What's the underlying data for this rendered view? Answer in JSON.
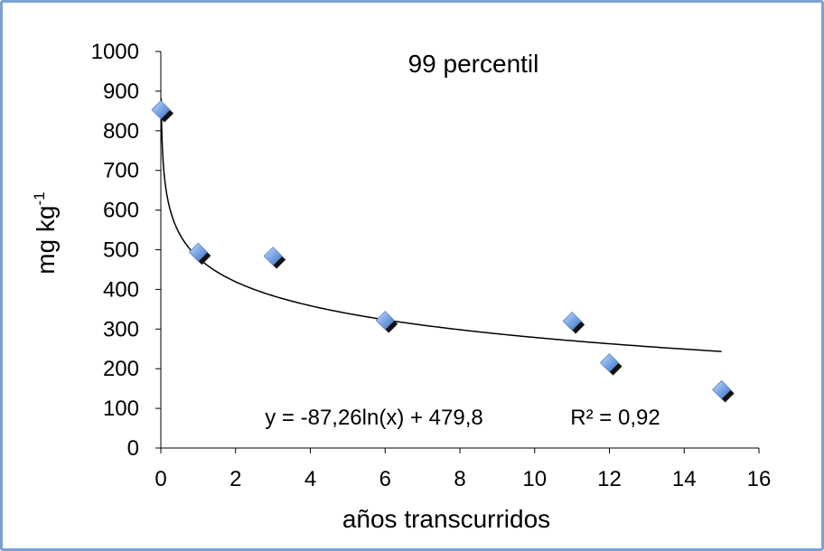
{
  "chart_data": {
    "type": "scatter",
    "title": "99 percentil",
    "xlabel": "años transcurridos",
    "ylabel": "mg kg",
    "ylabel_superscript": "-1",
    "xlim": [
      0,
      16
    ],
    "ylim": [
      0,
      1000
    ],
    "xticks": [
      0,
      2,
      4,
      6,
      8,
      10,
      12,
      14,
      16
    ],
    "yticks": [
      0,
      100,
      200,
      300,
      400,
      500,
      600,
      700,
      800,
      900,
      1000
    ],
    "grid": false,
    "series": [
      {
        "x": [
          0,
          1,
          3,
          6,
          11,
          12,
          15
        ],
        "y": [
          853,
          494,
          484,
          322,
          320,
          215,
          147
        ],
        "marker": "diamond",
        "color": "#7aa6e6"
      }
    ],
    "trendline": {
      "type": "logarithmic",
      "a": -87.26,
      "b": 479.8,
      "x_range": [
        0.01,
        15
      ],
      "color": "#000000"
    },
    "annotations": {
      "equation": "y = -87,26ln(x) + 479,8",
      "r_squared": "R² = 0,92"
    }
  }
}
